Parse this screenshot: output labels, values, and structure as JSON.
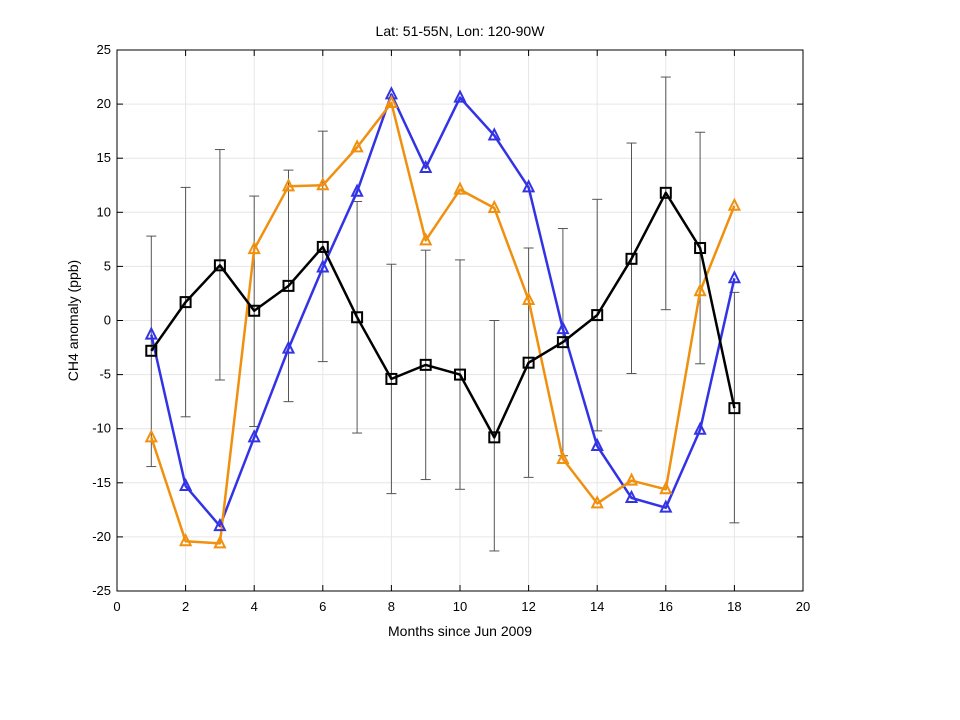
{
  "chart_data": {
    "type": "line",
    "title": "Lat: 51-55N, Lon: 120-90W",
    "xlabel": "Months since Jun 2009",
    "ylabel": "CH4 anomaly (ppb)",
    "xlim": [
      0,
      20
    ],
    "ylim": [
      -25,
      25
    ],
    "xticks": [
      0,
      2,
      4,
      6,
      8,
      10,
      12,
      14,
      16,
      18,
      20
    ],
    "yticks": [
      -25,
      -20,
      -15,
      -10,
      -5,
      0,
      5,
      10,
      15,
      20,
      25
    ],
    "grid": true,
    "x": [
      1,
      2,
      3,
      4,
      5,
      6,
      7,
      8,
      9,
      10,
      11,
      12,
      13,
      14,
      15,
      16,
      17,
      18
    ],
    "series": [
      {
        "color": "#3333e6",
        "marker": "triangle",
        "values": [
          -1.3,
          -15.3,
          -19.0,
          -10.8,
          -2.6,
          4.9,
          11.9,
          20.9,
          14.1,
          20.6,
          17.1,
          12.3,
          -0.8,
          -11.6,
          -16.4,
          -17.3,
          -10.1,
          3.9
        ]
      },
      {
        "color": "#f0900f",
        "marker": "triangle",
        "values": [
          -10.8,
          -20.4,
          -20.6,
          6.6,
          12.4,
          12.5,
          16.0,
          20.1,
          7.4,
          12.1,
          10.4,
          1.9,
          -12.8,
          -16.9,
          -14.8,
          -15.6,
          2.7,
          10.6
        ]
      },
      {
        "color": "#000000",
        "marker": "square",
        "values": [
          -2.8,
          1.7,
          5.1,
          0.9,
          3.2,
          6.8,
          0.3,
          -5.4,
          -4.1,
          -5.0,
          -10.8,
          -3.9,
          -2.0,
          0.5,
          5.7,
          11.8,
          6.7,
          -8.1
        ],
        "error_low": [
          -13.5,
          -8.9,
          -5.5,
          -9.8,
          -7.5,
          -3.8,
          -10.4,
          -16.0,
          -14.7,
          -15.6,
          -21.3,
          -14.5,
          -12.5,
          -10.2,
          -4.9,
          1.0,
          -4.0,
          -18.7
        ],
        "error_high": [
          7.8,
          12.3,
          15.8,
          11.5,
          13.9,
          17.5,
          11.0,
          5.2,
          6.5,
          5.6,
          0.0,
          6.7,
          8.5,
          11.2,
          16.4,
          22.5,
          17.4,
          2.6
        ]
      }
    ]
  }
}
